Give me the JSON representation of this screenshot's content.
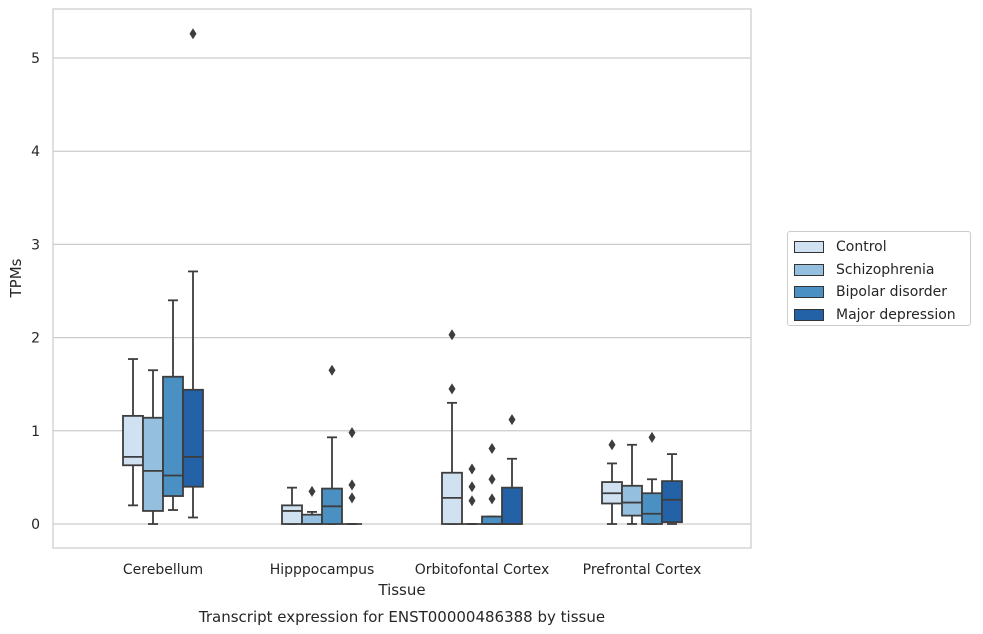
{
  "chart_data": {
    "type": "box",
    "title": "Transcript expression for ENST00000486388 by tissue",
    "xlabel": "Tissue",
    "ylabel": "TPMs",
    "ylim": [
      -0.25,
      5.5
    ],
    "yticks": [
      0,
      1,
      2,
      3,
      4,
      5
    ],
    "grid": true,
    "legend_position": "right",
    "categories": [
      "Cerebellum",
      "Hipppocampus",
      "Orbitofontal Cortex",
      "Prefrontal Cortex"
    ],
    "series": [
      {
        "name": "Control",
        "color": "#d0e2f2",
        "boxes": [
          {
            "whislo": 0.2,
            "q1": 0.63,
            "med": 0.72,
            "q3": 1.16,
            "whishi": 1.77,
            "fliers": []
          },
          {
            "whislo": 0.0,
            "q1": 0.0,
            "med": 0.14,
            "q3": 0.2,
            "whishi": 0.39,
            "fliers": []
          },
          {
            "whislo": 0.0,
            "q1": 0.0,
            "med": 0.28,
            "q3": 0.55,
            "whishi": 1.3,
            "fliers": [
              1.45,
              2.03
            ]
          },
          {
            "whislo": 0.0,
            "q1": 0.22,
            "med": 0.33,
            "q3": 0.45,
            "whishi": 0.65,
            "fliers": [
              0.85
            ]
          }
        ]
      },
      {
        "name": "Schizophrenia",
        "color": "#94bfdf",
        "boxes": [
          {
            "whislo": 0.0,
            "q1": 0.14,
            "med": 0.57,
            "q3": 1.14,
            "whishi": 1.65,
            "fliers": []
          },
          {
            "whislo": 0.0,
            "q1": 0.0,
            "med": 0.0,
            "q3": 0.1,
            "whishi": 0.13,
            "fliers": [
              0.35
            ]
          },
          {
            "whislo": 0.0,
            "q1": 0.0,
            "med": 0.0,
            "q3": 0.0,
            "whishi": 0.0,
            "fliers": [
              0.25,
              0.4,
              0.59
            ]
          },
          {
            "whislo": 0.0,
            "q1": 0.09,
            "med": 0.23,
            "q3": 0.41,
            "whishi": 0.85,
            "fliers": []
          }
        ]
      },
      {
        "name": "Bipolar disorder",
        "color": "#4a90c2",
        "boxes": [
          {
            "whislo": 0.15,
            "q1": 0.3,
            "med": 0.52,
            "q3": 1.58,
            "whishi": 2.4,
            "fliers": []
          },
          {
            "whislo": 0.0,
            "q1": 0.0,
            "med": 0.19,
            "q3": 0.38,
            "whishi": 0.93,
            "fliers": [
              1.65
            ]
          },
          {
            "whislo": 0.0,
            "q1": 0.0,
            "med": 0.0,
            "q3": 0.08,
            "whishi": 0.08,
            "fliers": [
              0.27,
              0.48,
              0.81
            ]
          },
          {
            "whislo": 0.0,
            "q1": 0.0,
            "med": 0.11,
            "q3": 0.33,
            "whishi": 0.48,
            "fliers": [
              0.93
            ]
          }
        ]
      },
      {
        "name": "Major depression",
        "color": "#2462a7",
        "boxes": [
          {
            "whislo": 0.07,
            "q1": 0.4,
            "med": 0.72,
            "q3": 1.44,
            "whishi": 2.71,
            "fliers": [
              5.26
            ]
          },
          {
            "whislo": 0.0,
            "q1": 0.0,
            "med": 0.0,
            "q3": 0.0,
            "whishi": 0.0,
            "fliers": [
              0.28,
              0.42,
              0.98
            ]
          },
          {
            "whislo": 0.0,
            "q1": 0.0,
            "med": 0.0,
            "q3": 0.39,
            "whishi": 0.7,
            "fliers": [
              1.12
            ]
          },
          {
            "whislo": 0.0,
            "q1": 0.02,
            "med": 0.26,
            "q3": 0.46,
            "whishi": 0.75,
            "fliers": []
          }
        ]
      }
    ]
  }
}
